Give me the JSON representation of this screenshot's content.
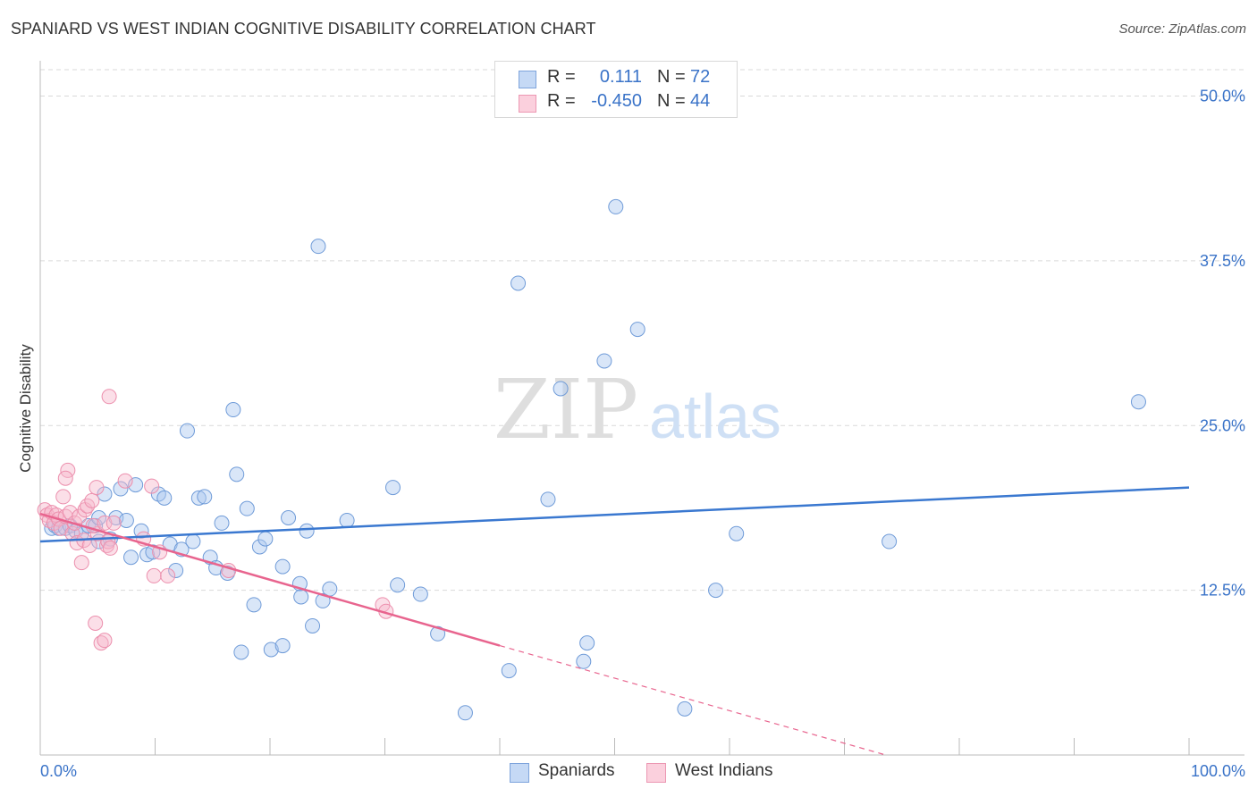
{
  "title": "SPANIARD VS WEST INDIAN COGNITIVE DISABILITY CORRELATION CHART",
  "source": "Source: ZipAtlas.com",
  "watermark": {
    "zip": "ZIP",
    "atlas": "atlas"
  },
  "colors": {
    "blue": "#3a78d0",
    "blue_fill": "#aac8f0",
    "pink": "#e8648e",
    "pink_fill": "#f7b8cb",
    "axis_text": "#3a73c8",
    "grid": "#d9d9d9"
  },
  "legend_top": [
    {
      "r_label": "R =",
      "r_value": "0.111",
      "n_label": "N =",
      "n_value": "72"
    },
    {
      "r_label": "R =",
      "r_value": "-0.450",
      "n_label": "N =",
      "n_value": "44"
    }
  ],
  "bottom_legend": [
    "Spaniards",
    "West Indians"
  ],
  "chart_data": {
    "type": "scatter",
    "title": "SPANIARD VS WEST INDIAN COGNITIVE DISABILITY CORRELATION CHART",
    "xlabel": "",
    "ylabel": "Cognitive Disability",
    "xlim": [
      0,
      100
    ],
    "ylim": [
      0,
      52
    ],
    "x_tick_labels": [
      "0.0%",
      "100.0%"
    ],
    "y_ticks": [
      12.5,
      25.0,
      37.5,
      50.0
    ],
    "y_tick_labels": [
      "12.5%",
      "25.0%",
      "37.5%",
      "50.0%"
    ],
    "series": [
      {
        "name": "Spaniards",
        "r": 0.111,
        "n": 72,
        "trend": {
          "x": [
            0,
            100
          ],
          "y": [
            16.2,
            20.3
          ]
        },
        "points": [
          {
            "x": 1,
            "y": 17.2
          },
          {
            "x": 1.3,
            "y": 17.4
          },
          {
            "x": 1.6,
            "y": 17.2
          },
          {
            "x": 2.2,
            "y": 17.2
          },
          {
            "x": 2.6,
            "y": 17.4
          },
          {
            "x": 3.1,
            "y": 17.0
          },
          {
            "x": 3.6,
            "y": 16.8
          },
          {
            "x": 4.2,
            "y": 17.4
          },
          {
            "x": 4.8,
            "y": 17.4
          },
          {
            "x": 5.1,
            "y": 18.0
          },
          {
            "x": 5.1,
            "y": 16.2
          },
          {
            "x": 5.6,
            "y": 19.8
          },
          {
            "x": 6.1,
            "y": 16.4
          },
          {
            "x": 6.6,
            "y": 18.0
          },
          {
            "x": 7.0,
            "y": 20.2
          },
          {
            "x": 7.5,
            "y": 17.8
          },
          {
            "x": 7.9,
            "y": 15.0
          },
          {
            "x": 8.3,
            "y": 20.5
          },
          {
            "x": 8.8,
            "y": 17.0
          },
          {
            "x": 9.3,
            "y": 15.2
          },
          {
            "x": 9.8,
            "y": 15.4
          },
          {
            "x": 10.3,
            "y": 19.8
          },
          {
            "x": 10.8,
            "y": 19.5
          },
          {
            "x": 11.3,
            "y": 16.0
          },
          {
            "x": 11.8,
            "y": 14.0
          },
          {
            "x": 12.3,
            "y": 15.6
          },
          {
            "x": 12.8,
            "y": 24.6
          },
          {
            "x": 13.3,
            "y": 16.2
          },
          {
            "x": 13.8,
            "y": 19.5
          },
          {
            "x": 14.3,
            "y": 19.6
          },
          {
            "x": 14.8,
            "y": 15.0
          },
          {
            "x": 15.3,
            "y": 14.2
          },
          {
            "x": 15.8,
            "y": 17.6
          },
          {
            "x": 16.3,
            "y": 13.8
          },
          {
            "x": 16.8,
            "y": 26.2
          },
          {
            "x": 17.1,
            "y": 21.3
          },
          {
            "x": 17.5,
            "y": 7.8
          },
          {
            "x": 18.0,
            "y": 18.7
          },
          {
            "x": 18.6,
            "y": 11.4
          },
          {
            "x": 19.1,
            "y": 15.8
          },
          {
            "x": 19.6,
            "y": 16.4
          },
          {
            "x": 20.1,
            "y": 8.0
          },
          {
            "x": 21.1,
            "y": 8.3
          },
          {
            "x": 21.1,
            "y": 14.3
          },
          {
            "x": 21.6,
            "y": 18.0
          },
          {
            "x": 22.6,
            "y": 13.0
          },
          {
            "x": 22.7,
            "y": 12.0
          },
          {
            "x": 23.2,
            "y": 17.0
          },
          {
            "x": 23.7,
            "y": 9.8
          },
          {
            "x": 24.2,
            "y": 38.6
          },
          {
            "x": 24.6,
            "y": 11.7
          },
          {
            "x": 25.2,
            "y": 12.6
          },
          {
            "x": 26.7,
            "y": 17.8
          },
          {
            "x": 30.7,
            "y": 20.3
          },
          {
            "x": 31.1,
            "y": 12.9
          },
          {
            "x": 33.1,
            "y": 12.2
          },
          {
            "x": 34.6,
            "y": 9.2
          },
          {
            "x": 37.0,
            "y": 3.2
          },
          {
            "x": 40.8,
            "y": 6.4
          },
          {
            "x": 41.6,
            "y": 35.8
          },
          {
            "x": 44.2,
            "y": 19.4
          },
          {
            "x": 45.3,
            "y": 27.8
          },
          {
            "x": 47.3,
            "y": 7.1
          },
          {
            "x": 47.6,
            "y": 8.5
          },
          {
            "x": 49.1,
            "y": 29.9
          },
          {
            "x": 50.1,
            "y": 41.6
          },
          {
            "x": 52.0,
            "y": 32.3
          },
          {
            "x": 56.1,
            "y": 3.5
          },
          {
            "x": 58.8,
            "y": 12.5
          },
          {
            "x": 60.6,
            "y": 16.8
          },
          {
            "x": 73.9,
            "y": 16.2
          },
          {
            "x": 95.6,
            "y": 26.8
          }
        ]
      },
      {
        "name": "West Indians",
        "r": -0.45,
        "n": 44,
        "trend": {
          "x": [
            0,
            40.0
          ],
          "y": [
            18.3,
            8.3
          ]
        },
        "trend_dashed": {
          "x": [
            40.0,
            73.6
          ],
          "y": [
            8.3,
            0
          ]
        },
        "points": [
          {
            "x": 0.4,
            "y": 18.6
          },
          {
            "x": 0.6,
            "y": 18.2
          },
          {
            "x": 0.8,
            "y": 17.8
          },
          {
            "x": 1.0,
            "y": 18.4
          },
          {
            "x": 1.2,
            "y": 17.6
          },
          {
            "x": 1.4,
            "y": 18.2
          },
          {
            "x": 1.6,
            "y": 17.9
          },
          {
            "x": 1.8,
            "y": 17.2
          },
          {
            "x": 2.0,
            "y": 19.6
          },
          {
            "x": 2.2,
            "y": 18.1
          },
          {
            "x": 2.4,
            "y": 21.6
          },
          {
            "x": 2.2,
            "y": 21.0
          },
          {
            "x": 2.6,
            "y": 18.4
          },
          {
            "x": 2.8,
            "y": 16.8
          },
          {
            "x": 3.0,
            "y": 17.6
          },
          {
            "x": 3.2,
            "y": 16.1
          },
          {
            "x": 3.4,
            "y": 18.1
          },
          {
            "x": 3.6,
            "y": 14.6
          },
          {
            "x": 3.8,
            "y": 16.3
          },
          {
            "x": 3.9,
            "y": 18.6
          },
          {
            "x": 4.1,
            "y": 18.9
          },
          {
            "x": 4.3,
            "y": 15.9
          },
          {
            "x": 4.5,
            "y": 19.3
          },
          {
            "x": 4.8,
            "y": 10.0
          },
          {
            "x": 4.9,
            "y": 20.3
          },
          {
            "x": 5.0,
            "y": 16.8
          },
          {
            "x": 5.3,
            "y": 8.5
          },
          {
            "x": 5.6,
            "y": 8.7
          },
          {
            "x": 4.6,
            "y": 17.4
          },
          {
            "x": 5.6,
            "y": 17.6
          },
          {
            "x": 5.8,
            "y": 15.9
          },
          {
            "x": 6.0,
            "y": 27.2
          },
          {
            "x": 5.9,
            "y": 16.2
          },
          {
            "x": 6.1,
            "y": 15.7
          },
          {
            "x": 7.4,
            "y": 20.8
          },
          {
            "x": 9.0,
            "y": 16.4
          },
          {
            "x": 9.7,
            "y": 20.4
          },
          {
            "x": 9.9,
            "y": 13.6
          },
          {
            "x": 10.4,
            "y": 15.4
          },
          {
            "x": 11.1,
            "y": 13.6
          },
          {
            "x": 16.4,
            "y": 14.0
          },
          {
            "x": 29.8,
            "y": 11.4
          },
          {
            "x": 30.1,
            "y": 10.9
          },
          {
            "x": 6.4,
            "y": 17.6
          }
        ]
      }
    ]
  }
}
